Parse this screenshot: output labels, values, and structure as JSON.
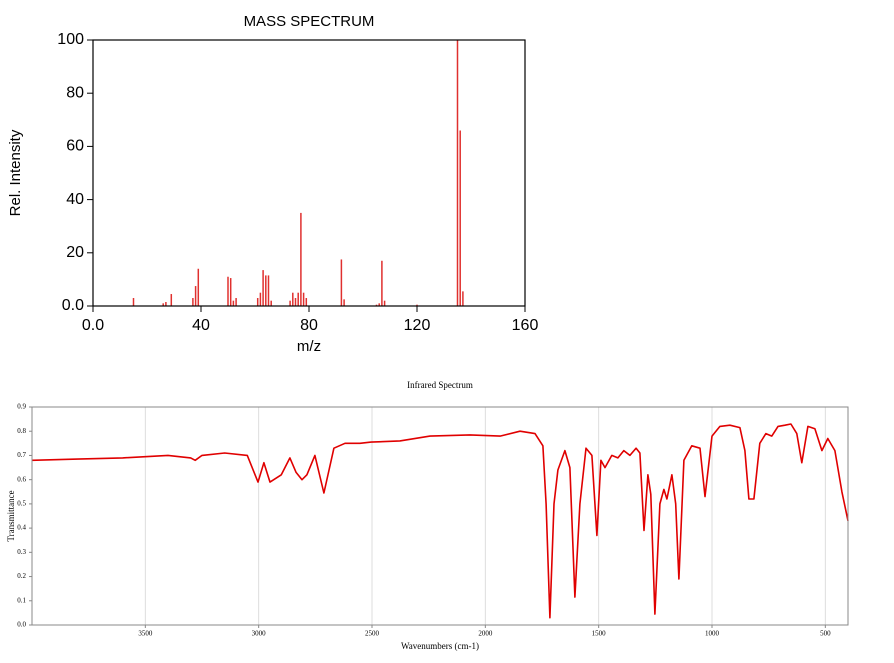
{
  "chart_data": [
    {
      "type": "bar",
      "title": "MASS SPECTRUM",
      "xlabel": "m/z",
      "ylabel": "Rel. Intensity",
      "color": "#e0302e",
      "x": [
        15,
        26,
        27,
        29,
        37,
        38,
        39,
        50,
        51,
        52,
        53,
        61,
        62,
        63,
        64,
        65,
        66,
        73,
        74,
        75,
        76,
        77,
        78,
        79,
        92,
        93,
        105,
        106,
        107,
        108,
        120,
        135,
        136,
        137
      ],
      "values": [
        3,
        1,
        1.5,
        4.5,
        3,
        7.5,
        14,
        11,
        10.5,
        2,
        3,
        3,
        5,
        13.5,
        11.5,
        11.5,
        2,
        2,
        5,
        3,
        5,
        35,
        5,
        3,
        17.5,
        2.5,
        0.5,
        1,
        17,
        2,
        0.5,
        100,
        66,
        5.5
      ],
      "xlim": [
        0,
        160
      ],
      "xticks": [
        {
          "value": 0,
          "label": "0.0"
        },
        40,
        80,
        120,
        160
      ],
      "ylim": [
        0,
        100
      ],
      "yticks": [
        {
          "value": 0,
          "label": "0.0"
        },
        20,
        40,
        60,
        80,
        100
      ],
      "grid": false
    },
    {
      "type": "line",
      "title": "Infrared Spectrum",
      "xlabel": "Wavenumbers (cm-1)",
      "ylabel": "Transmittance",
      "color": "#e00000",
      "x": [
        4000,
        3800,
        3600,
        3400,
        3300,
        3280,
        3250,
        3150,
        3050,
        3003,
        2977,
        2950,
        2900,
        2862,
        2835,
        2809,
        2787,
        2752,
        2712,
        2668,
        2619,
        2553,
        2504,
        2377,
        2244,
        2068,
        1935,
        1847,
        1781,
        1746,
        1732,
        1715,
        1697,
        1680,
        1649,
        1627,
        1605,
        1583,
        1556,
        1530,
        1508,
        1490,
        1472,
        1442,
        1415,
        1389,
        1362,
        1335,
        1318,
        1300,
        1283,
        1270,
        1252,
        1230,
        1212,
        1199,
        1177,
        1160,
        1146,
        1124,
        1089,
        1053,
        1031,
        1000,
        965,
        921,
        877,
        855,
        837,
        815,
        789,
        762,
        736,
        709,
        678,
        652,
        626,
        604,
        577,
        546,
        515,
        489,
        458,
        427,
        400
      ],
      "values": [
        0.68,
        0.685,
        0.69,
        0.7,
        0.69,
        0.68,
        0.7,
        0.71,
        0.7,
        0.59,
        0.67,
        0.59,
        0.62,
        0.69,
        0.63,
        0.6,
        0.62,
        0.7,
        0.545,
        0.73,
        0.75,
        0.75,
        0.755,
        0.76,
        0.78,
        0.785,
        0.78,
        0.8,
        0.79,
        0.74,
        0.5,
        0.03,
        0.5,
        0.64,
        0.72,
        0.65,
        0.115,
        0.5,
        0.73,
        0.7,
        0.37,
        0.68,
        0.65,
        0.7,
        0.69,
        0.72,
        0.7,
        0.73,
        0.71,
        0.39,
        0.62,
        0.54,
        0.045,
        0.5,
        0.56,
        0.52,
        0.62,
        0.5,
        0.19,
        0.68,
        0.74,
        0.73,
        0.53,
        0.78,
        0.82,
        0.825,
        0.815,
        0.72,
        0.52,
        0.52,
        0.75,
        0.79,
        0.78,
        0.82,
        0.825,
        0.83,
        0.79,
        0.67,
        0.82,
        0.81,
        0.72,
        0.77,
        0.72,
        0.55,
        0.43
      ],
      "xlim": [
        4000,
        400
      ],
      "xticks": [
        3500,
        3000,
        2500,
        2000,
        1500,
        1000,
        500
      ],
      "ylim": [
        0,
        0.9
      ],
      "yticks": [
        {
          "value": 0,
          "label": "0.0"
        },
        0.1,
        0.2,
        0.3,
        0.4,
        0.5,
        0.6,
        0.7,
        0.8,
        0.9
      ],
      "grid": "x"
    }
  ]
}
